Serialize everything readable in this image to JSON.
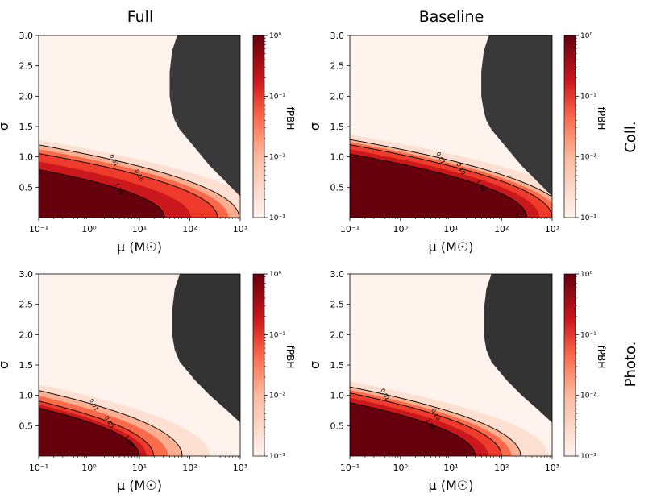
{
  "figure": {
    "column_titles": [
      "Full",
      "Baseline"
    ],
    "row_labels": [
      "Coll.",
      "Photo."
    ]
  },
  "colors": {
    "cmap_low": "#fff3ee",
    "cmap_mid": "#ef3b2c",
    "cmap_high": "#67000d",
    "excluded_region": "#333333",
    "contour_line": "#000000"
  },
  "chart_data": [
    {
      "type": "heatmap",
      "title": "Full",
      "row": "Coll.",
      "xlabel": "μ   (M☉)",
      "ylabel": "σ",
      "x_scale": "log",
      "xlim_log10": [
        -1,
        3
      ],
      "ylim": [
        0,
        3
      ],
      "x_ticks": [
        "10⁻¹",
        "10⁰",
        "10¹",
        "10²",
        "10³"
      ],
      "y_ticks": [
        "0.5",
        "1.0",
        "1.5",
        "2.0",
        "2.5",
        "3.0"
      ],
      "colorbar": {
        "label": "fPBH",
        "scale": "log",
        "range": [
          0.001,
          1
        ],
        "ticks": [
          "10⁻³",
          "10⁻²",
          "10⁻¹",
          "10⁰"
        ]
      },
      "contours": [
        {
          "level": "1.00",
          "sigma0_log_mu": 1.5,
          "slope": 0.5,
          "label_at_log_mu": 0.6
        },
        {
          "level": "0.10",
          "sigma0_log_mu": 2.55,
          "slope": 0.56,
          "label_at_log_mu": 1.0
        },
        {
          "level": "0.01",
          "sigma0_log_mu": 2.98,
          "slope": 0.6,
          "label_at_log_mu": 0.5
        }
      ],
      "excluded_boundary": [
        [
          3.0,
          0.35
        ],
        [
          2.7,
          0.6
        ],
        [
          2.4,
          0.85
        ],
        [
          2.1,
          1.15
        ],
        [
          1.8,
          1.45
        ],
        [
          1.7,
          1.6
        ],
        [
          1.65,
          1.75
        ],
        [
          1.6,
          2.0
        ],
        [
          1.6,
          2.4
        ],
        [
          1.65,
          2.75
        ],
        [
          1.75,
          3.0
        ]
      ]
    },
    {
      "type": "heatmap",
      "title": "Baseline",
      "row": "Coll.",
      "xlabel": "μ   (M☉)",
      "ylabel": "σ",
      "x_scale": "log",
      "xlim_log10": [
        -1,
        3
      ],
      "ylim": [
        0,
        3
      ],
      "x_ticks": [
        "10⁻¹",
        "10⁰",
        "10¹",
        "10²",
        "10³"
      ],
      "y_ticks": [
        "0.5",
        "1.0",
        "1.5",
        "2.0",
        "2.5",
        "3.0"
      ],
      "colorbar": {
        "label": "fPBH",
        "scale": "log",
        "range": [
          0.001,
          1
        ],
        "ticks": [
          "10⁻³",
          "10⁻²",
          "10⁻¹",
          "10⁰"
        ]
      },
      "contours": [
        {
          "level": "1.00",
          "sigma0_log_mu": 2.5,
          "slope": 0.56,
          "label_at_log_mu": 1.6
        },
        {
          "level": "0.10",
          "sigma0_log_mu": 3.0,
          "slope": 0.6,
          "label_at_log_mu": 1.2
        },
        {
          "level": "0.01",
          "sigma0_log_mu": 3.3,
          "slope": 0.62,
          "label_at_log_mu": 0.8
        }
      ],
      "excluded_boundary": [
        [
          3.0,
          0.35
        ],
        [
          2.7,
          0.6
        ],
        [
          2.4,
          0.85
        ],
        [
          2.1,
          1.15
        ],
        [
          1.8,
          1.45
        ],
        [
          1.7,
          1.6
        ],
        [
          1.65,
          1.75
        ],
        [
          1.6,
          2.0
        ],
        [
          1.6,
          2.4
        ],
        [
          1.65,
          2.75
        ],
        [
          1.75,
          3.0
        ]
      ]
    },
    {
      "type": "heatmap",
      "title": "",
      "row": "Photo.",
      "xlabel": "μ   (M☉)",
      "ylabel": "σ",
      "x_scale": "log",
      "xlim_log10": [
        -1,
        3
      ],
      "ylim": [
        0,
        3
      ],
      "x_ticks": [
        "10⁻¹",
        "10⁰",
        "10¹",
        "10²",
        "10³"
      ],
      "y_ticks": [
        "0.5",
        "1.0",
        "1.5",
        "2.0",
        "2.5",
        "3.0"
      ],
      "colorbar": {
        "label": "fPBH",
        "scale": "log",
        "range": [
          0.001,
          1
        ],
        "ticks": [
          "10⁻³",
          "10⁻²",
          "10⁻¹",
          "10⁰"
        ]
      },
      "contours": [
        {
          "level": "1.00",
          "sigma0_log_mu": 1.0,
          "slope": 0.56,
          "label_at_log_mu": 0.8
        },
        {
          "level": "0.10",
          "sigma0_log_mu": 1.28,
          "slope": 0.6,
          "label_at_log_mu": 0.4
        },
        {
          "level": "0.01",
          "sigma0_log_mu": 1.85,
          "slope": 0.64,
          "label_at_log_mu": 0.1
        }
      ],
      "excluded_boundary": [
        [
          3.0,
          0.55
        ],
        [
          2.7,
          0.78
        ],
        [
          2.4,
          1.0
        ],
        [
          2.1,
          1.25
        ],
        [
          1.8,
          1.55
        ],
        [
          1.7,
          1.75
        ],
        [
          1.65,
          2.0
        ],
        [
          1.65,
          2.4
        ],
        [
          1.7,
          2.75
        ],
        [
          1.8,
          3.0
        ]
      ]
    },
    {
      "type": "heatmap",
      "title": "",
      "row": "Photo.",
      "xlabel": "μ   (M☉)",
      "ylabel": "σ",
      "x_scale": "log",
      "xlim_log10": [
        -1,
        3
      ],
      "ylim": [
        0,
        3
      ],
      "x_ticks": [
        "10⁻¹",
        "10⁰",
        "10¹",
        "10²",
        "10³"
      ],
      "y_ticks": [
        "0.5",
        "1.0",
        "1.5",
        "2.0",
        "2.5",
        "3.0"
      ],
      "colorbar": {
        "label": "fPBH",
        "scale": "log",
        "range": [
          0.001,
          1
        ],
        "ticks": [
          "10⁻³",
          "10⁻²",
          "10⁻¹",
          "10⁰"
        ]
      },
      "contours": [
        {
          "level": "1.00",
          "sigma0_log_mu": 1.48,
          "slope": 0.56,
          "label_at_log_mu": 0.6
        },
        {
          "level": "0.10",
          "sigma0_log_mu": 2.0,
          "slope": 0.6,
          "label_at_log_mu": 0.7
        },
        {
          "level": "0.01",
          "sigma0_log_mu": 2.38,
          "slope": 0.62,
          "label_at_log_mu": -0.3
        }
      ],
      "excluded_boundary": [
        [
          3.0,
          0.55
        ],
        [
          2.7,
          0.78
        ],
        [
          2.4,
          1.0
        ],
        [
          2.1,
          1.25
        ],
        [
          1.8,
          1.55
        ],
        [
          1.7,
          1.75
        ],
        [
          1.65,
          2.0
        ],
        [
          1.65,
          2.4
        ],
        [
          1.7,
          2.75
        ],
        [
          1.8,
          3.0
        ]
      ]
    }
  ]
}
